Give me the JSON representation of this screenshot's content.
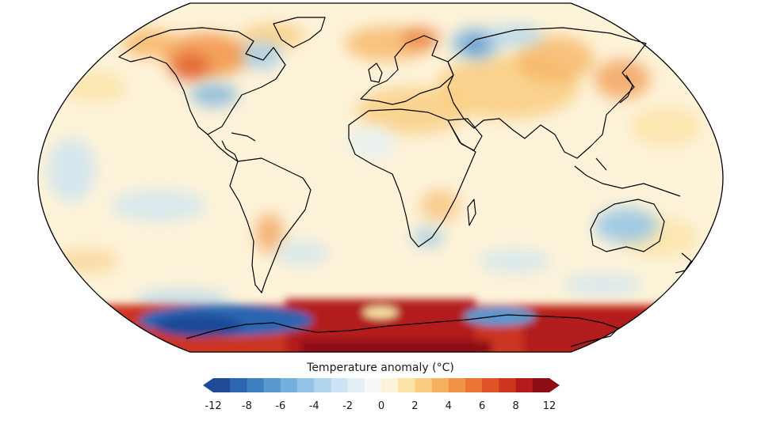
{
  "legend": {
    "title": "Temperature anomaly (°C)",
    "ticks": [
      "-12",
      "-8",
      "-6",
      "-4",
      "-2",
      "0",
      "2",
      "4",
      "6",
      "8",
      "12"
    ],
    "bins": [
      -12,
      -10,
      -8,
      -7,
      -6,
      -5,
      -4,
      -3,
      -2,
      -1,
      0,
      1,
      2,
      3,
      4,
      5,
      6,
      7,
      8,
      10,
      12
    ],
    "colors": [
      "#1e4a98",
      "#2c65b0",
      "#3e7fc1",
      "#5898cf",
      "#75afdc",
      "#93c4e8",
      "#b0d6ef",
      "#cbe4f3",
      "#e3f0f6",
      "#f5f8f4",
      "#fdf3d9",
      "#fce4a8",
      "#f9cc80",
      "#f6b160",
      "#f19347",
      "#e97434",
      "#de5426",
      "#cc3520",
      "#b31b1b",
      "#8c0d16"
    ],
    "extend": "both"
  },
  "map": {
    "projection": "Robinson",
    "ocean_base_color": "#fdf3d9",
    "coastline_color": "#000000"
  }
}
